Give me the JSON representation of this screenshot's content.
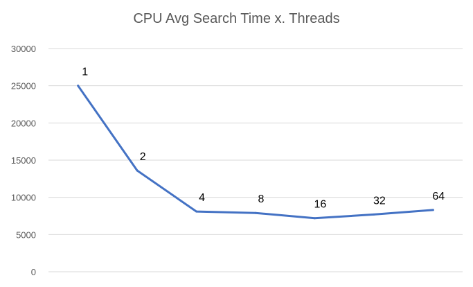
{
  "chart_data": {
    "type": "line",
    "title": "CPU Avg Search Time x. Threads",
    "xlabel": "",
    "ylabel": "",
    "x": [
      "1",
      "2",
      "4",
      "8",
      "16",
      "32",
      "64"
    ],
    "series": [
      {
        "values": [
          25000,
          13600,
          8100,
          7900,
          7200,
          7700,
          8300
        ],
        "data_labels": [
          "1",
          "2",
          "4",
          "8",
          "16",
          "32",
          "64"
        ]
      }
    ],
    "ylim": [
      0,
      30000
    ],
    "yticks": [
      "0",
      "5000",
      "10000",
      "15000",
      "20000",
      "25000",
      "30000"
    ],
    "grid": true,
    "legend": "none",
    "line_color": "#4472C4",
    "grid_color": "#D9D9D9"
  }
}
